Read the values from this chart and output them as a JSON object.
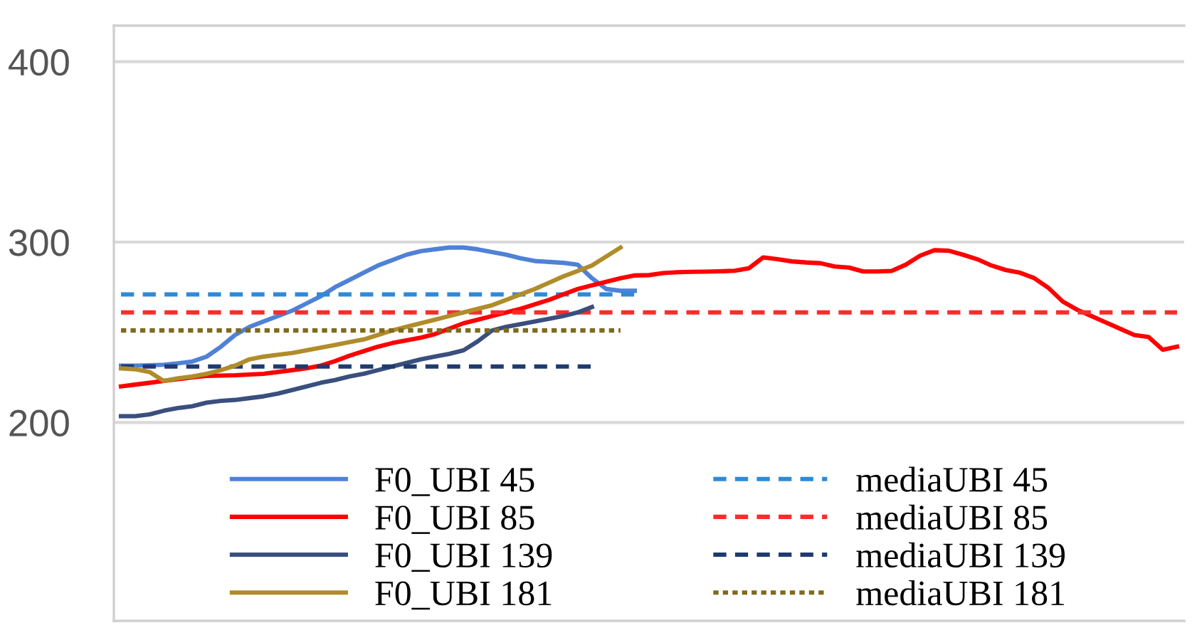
{
  "chart_data": {
    "type": "line",
    "categories": [
      null,
      null,
      null,
      null,
      null,
      null,
      null,
      null,
      null,
      null,
      null,
      null,
      null,
      null,
      null,
      null,
      null,
      null,
      null,
      null,
      null,
      null,
      null,
      null,
      null,
      null,
      null,
      null,
      null,
      null,
      null,
      null,
      null,
      null,
      null,
      null,
      null,
      null,
      null,
      null,
      null,
      null,
      null,
      null,
      null,
      null,
      null,
      null,
      null,
      null,
      null,
      null,
      null,
      null,
      null,
      null,
      null,
      null,
      null,
      null,
      null,
      null,
      null,
      null,
      null,
      null,
      null,
      null,
      null,
      null,
      null,
      null,
      null,
      null,
      null
    ],
    "ylim": [
      90,
      420
    ],
    "yticks": [
      200,
      300,
      400
    ],
    "grid": "y",
    "legend": "bottom",
    "tick_labels": "y",
    "marker": "none",
    "series": [
      {
        "name": "F0_UBI 45",
        "color": "#4f81d6",
        "line_style": "solid",
        "values": [
          231.5,
          231.5,
          231.7,
          232,
          232.8,
          233.8,
          236.5,
          242,
          248.5,
          253,
          256,
          259,
          262,
          266,
          270,
          275,
          279,
          283,
          287,
          290,
          293,
          295,
          296,
          297,
          297,
          296,
          294.5,
          293,
          291,
          289.5,
          289,
          288.5,
          287.5,
          280,
          274,
          273,
          273,
          null,
          null,
          null,
          null,
          null,
          null,
          null,
          null,
          null,
          null,
          null,
          null,
          null,
          null,
          null,
          null,
          null,
          null,
          null,
          null,
          null,
          null,
          null,
          null,
          null,
          null,
          null,
          null,
          null,
          null,
          null,
          null,
          null,
          null,
          null,
          null,
          null,
          null
        ]
      },
      {
        "name": "mediaUBI 45",
        "color": "#2e8ad8",
        "line_style": "dashed",
        "values": [
          271,
          271,
          271,
          271,
          271,
          271,
          271,
          271,
          271,
          271,
          271,
          271,
          271,
          271,
          271,
          271,
          271,
          271,
          271,
          271,
          271,
          271,
          271,
          271,
          271,
          271,
          271,
          271,
          271,
          271,
          271,
          271,
          271,
          271,
          271,
          271,
          271,
          null,
          null,
          null,
          null,
          null,
          null,
          null,
          null,
          null,
          null,
          null,
          null,
          null,
          null,
          null,
          null,
          null,
          null,
          null,
          null,
          null,
          null,
          null,
          null,
          null,
          null,
          null,
          null,
          null,
          null,
          null,
          null,
          null,
          null,
          null,
          null,
          null,
          null
        ]
      },
      {
        "name": "F0_UBI 85",
        "color": "#ff0000",
        "line_style": "solid",
        "values": [
          220,
          221,
          222,
          223,
          224,
          225,
          225.8,
          226,
          226.2,
          226.6,
          227,
          228,
          229,
          230,
          231.5,
          234,
          237,
          239.5,
          242,
          244,
          245.5,
          247,
          249,
          252,
          255,
          257,
          259,
          261,
          263,
          265.5,
          268,
          271,
          274,
          276,
          278,
          280,
          281.5,
          281.7,
          282.8,
          283.3,
          283.5,
          283.6,
          283.8,
          284.1,
          285.5,
          291.5,
          290.5,
          289.3,
          288.7,
          288.3,
          286.5,
          285.9,
          283.7,
          283.7,
          284,
          287.5,
          292.5,
          295.5,
          295.2,
          293,
          290.5,
          287,
          284.5,
          283,
          280,
          274.5,
          267,
          262.5,
          259,
          255.5,
          252,
          248.5,
          247.4,
          240.3,
          242
        ]
      },
      {
        "name": "mediaUBI 85",
        "color": "#ff2a2a",
        "line_style": "dashed",
        "values": [
          261,
          261,
          261,
          261,
          261,
          261,
          261,
          261,
          261,
          261,
          261,
          261,
          261,
          261,
          261,
          261,
          261,
          261,
          261,
          261,
          261,
          261,
          261,
          261,
          261,
          261,
          261,
          261,
          261,
          261,
          261,
          261,
          261,
          261,
          261,
          261,
          261,
          261,
          261,
          261,
          261,
          261,
          261,
          261,
          261,
          261,
          261,
          261,
          261,
          261,
          261,
          261,
          261,
          261,
          261,
          261,
          261,
          261,
          261,
          261,
          261,
          261,
          261,
          261,
          261,
          261,
          261,
          261,
          261,
          261,
          261,
          261,
          261,
          261,
          261
        ]
      },
      {
        "name": "F0_UBI 139",
        "color": "#3a4f7e",
        "line_style": "solid",
        "values": [
          203.5,
          203.5,
          204.5,
          206.5,
          208,
          209,
          211,
          212,
          212.5,
          213.5,
          214.5,
          216,
          218,
          220,
          222,
          223.5,
          225.5,
          227,
          229,
          231,
          233,
          235,
          236.5,
          238,
          240,
          245,
          251,
          253,
          254.5,
          256,
          257.5,
          259,
          261,
          264,
          null,
          null,
          null,
          null,
          null,
          null,
          null,
          null,
          null,
          null,
          null,
          null,
          null,
          null,
          null,
          null,
          null,
          null,
          null,
          null,
          null,
          null,
          null,
          null,
          null,
          null,
          null,
          null,
          null,
          null,
          null,
          null,
          null,
          null,
          null,
          null,
          null,
          null,
          null,
          null,
          null
        ]
      },
      {
        "name": "mediaUBI 139",
        "color": "#1f3a6e",
        "line_style": "dashed",
        "values": [
          231,
          231,
          231,
          231,
          231,
          231,
          231,
          231,
          231,
          231,
          231,
          231,
          231,
          231,
          231,
          231,
          231,
          231,
          231,
          231,
          231,
          231,
          231,
          231,
          231,
          231,
          231,
          231,
          231,
          231,
          231,
          231,
          231,
          231,
          null,
          null,
          null,
          null,
          null,
          null,
          null,
          null,
          null,
          null,
          null,
          null,
          null,
          null,
          null,
          null,
          null,
          null,
          null,
          null,
          null,
          null,
          null,
          null,
          null,
          null,
          null,
          null,
          null,
          null,
          null,
          null,
          null,
          null,
          null,
          null,
          null,
          null,
          null,
          null,
          null
        ]
      },
      {
        "name": "F0_UBI 181",
        "color": "#b08c2a",
        "line_style": "solid",
        "values": [
          230,
          229.5,
          228,
          223,
          224.5,
          225.5,
          227,
          229,
          231.5,
          235,
          236.5,
          237.5,
          238.5,
          240,
          241.5,
          243,
          244.5,
          246,
          248.5,
          251,
          253,
          255,
          257,
          259,
          261,
          263,
          265,
          268,
          271,
          274,
          277.5,
          281,
          284,
          287,
          292,
          297,
          null,
          null,
          null,
          null,
          null,
          null,
          null,
          null,
          null,
          null,
          null,
          null,
          null,
          null,
          null,
          null,
          null,
          null,
          null,
          null,
          null,
          null,
          null,
          null,
          null,
          null,
          null,
          null,
          null,
          null,
          null,
          null,
          null,
          null,
          null,
          null,
          null,
          null,
          null
        ]
      },
      {
        "name": "mediaUBI 181",
        "color": "#7f6a20",
        "line_style": "dotted",
        "values": [
          251,
          251,
          251,
          251,
          251,
          251,
          251,
          251,
          251,
          251,
          251,
          251,
          251,
          251,
          251,
          251,
          251,
          251,
          251,
          251,
          251,
          251,
          251,
          251,
          251,
          251,
          251,
          251,
          251,
          251,
          251,
          251,
          251,
          251,
          251,
          251,
          null,
          null,
          null,
          null,
          null,
          null,
          null,
          null,
          null,
          null,
          null,
          null,
          null,
          null,
          null,
          null,
          null,
          null,
          null,
          null,
          null,
          null,
          null,
          null,
          null,
          null,
          null,
          null,
          null,
          null,
          null,
          null,
          null,
          null,
          null,
          null,
          null,
          null,
          null
        ]
      }
    ]
  }
}
